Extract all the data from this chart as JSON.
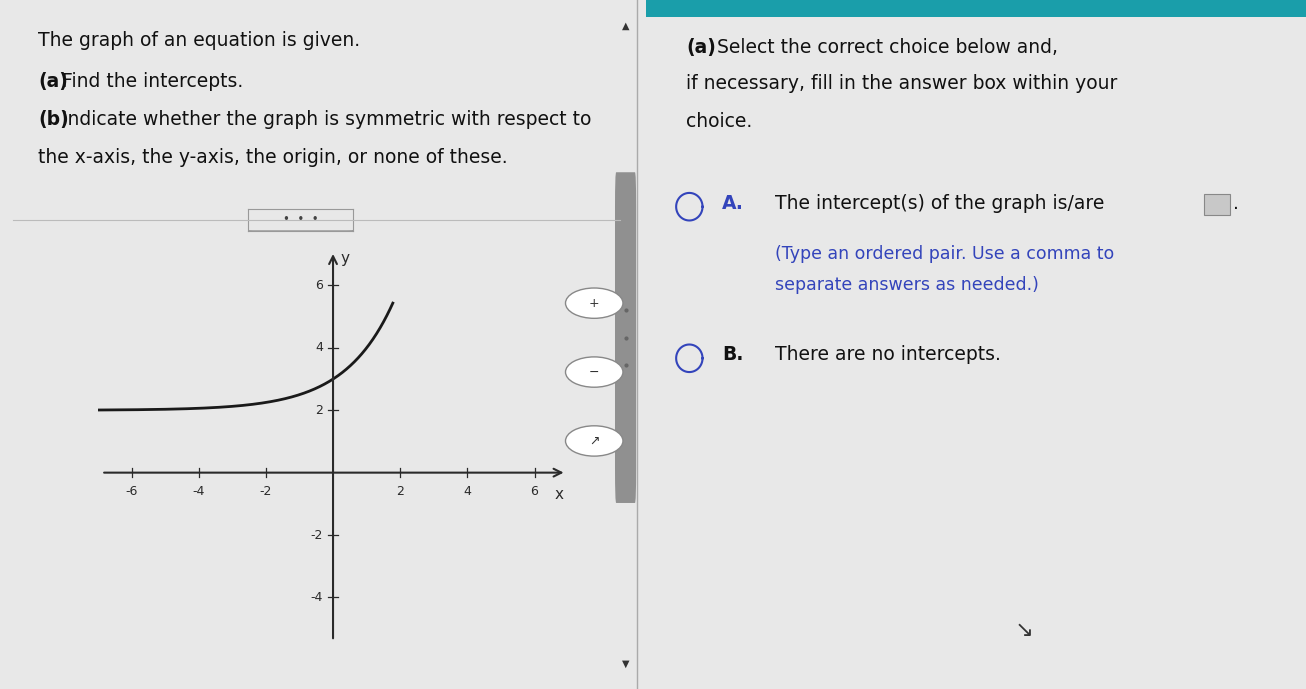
{
  "bg_color": "#e8e8e8",
  "graph_bg": "#e4e4e4",
  "left_text_plain": "The graph of an equation is given.",
  "left_text_a": "(a)",
  "left_text_a_rest": " Find the intercepts.",
  "left_text_b": "(b)",
  "left_text_b_rest": " Indicate whether the graph is symmetric with respect to",
  "left_text_last": "the x-axis, the y-axis, the origin, or none of these.",
  "right_header_bold": "(a)",
  "right_header_rest": " Select the correct choice below and,\nif necessary, fill in the answer box within your\nchoice.",
  "choice_A_label": "A.",
  "choice_A_main": "  The intercept(s) of the graph is/are",
  "choice_A_sub1": "(Type an ordered pair. Use a comma to",
  "choice_A_sub2": "separate answers as needed.)",
  "choice_B_label": "B.",
  "choice_B_main": "  There are no intercepts.",
  "xlim": [
    -7,
    7
  ],
  "ylim": [
    -5.5,
    7.2
  ],
  "xticks": [
    -6,
    -4,
    -2,
    2,
    4,
    6
  ],
  "yticks": [
    -4,
    -2,
    2,
    4,
    6
  ],
  "curve_x_start": -7,
  "curve_x_end": 1.78,
  "axis_color": "#2a2a2a",
  "curve_color": "#1a1a1a",
  "text_color": "#111111",
  "blue_color": "#3344bb",
  "divider_color": "#aaaaaa",
  "scrollbar_bg": "#b0b0b0",
  "scrollbar_thumb": "#888888"
}
